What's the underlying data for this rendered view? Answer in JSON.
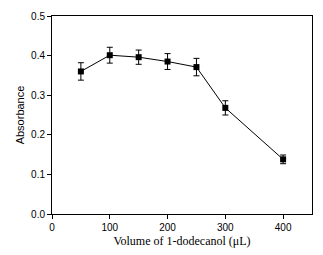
{
  "chart_data": {
    "type": "line",
    "x_label": "Volume of 1-dodecanol (μL)",
    "y_label": "Absorbance",
    "x": [
      50,
      100,
      150,
      200,
      250,
      300,
      400
    ],
    "values": [
      0.36,
      0.401,
      0.396,
      0.385,
      0.371,
      0.268,
      0.138
    ],
    "errors": [
      0.022,
      0.02,
      0.018,
      0.02,
      0.022,
      0.018,
      0.011
    ],
    "color": "#000000",
    "marker": "square",
    "line_style": "solid",
    "xlim": [
      0,
      450
    ],
    "xticks": [
      0,
      100,
      200,
      300,
      400
    ],
    "ylim": [
      0,
      0.5
    ],
    "yticks": [
      {
        "value": 0,
        "label": "0.0"
      },
      0.1,
      0.2,
      0.3,
      0.4,
      0.5
    ],
    "grid": false
  }
}
